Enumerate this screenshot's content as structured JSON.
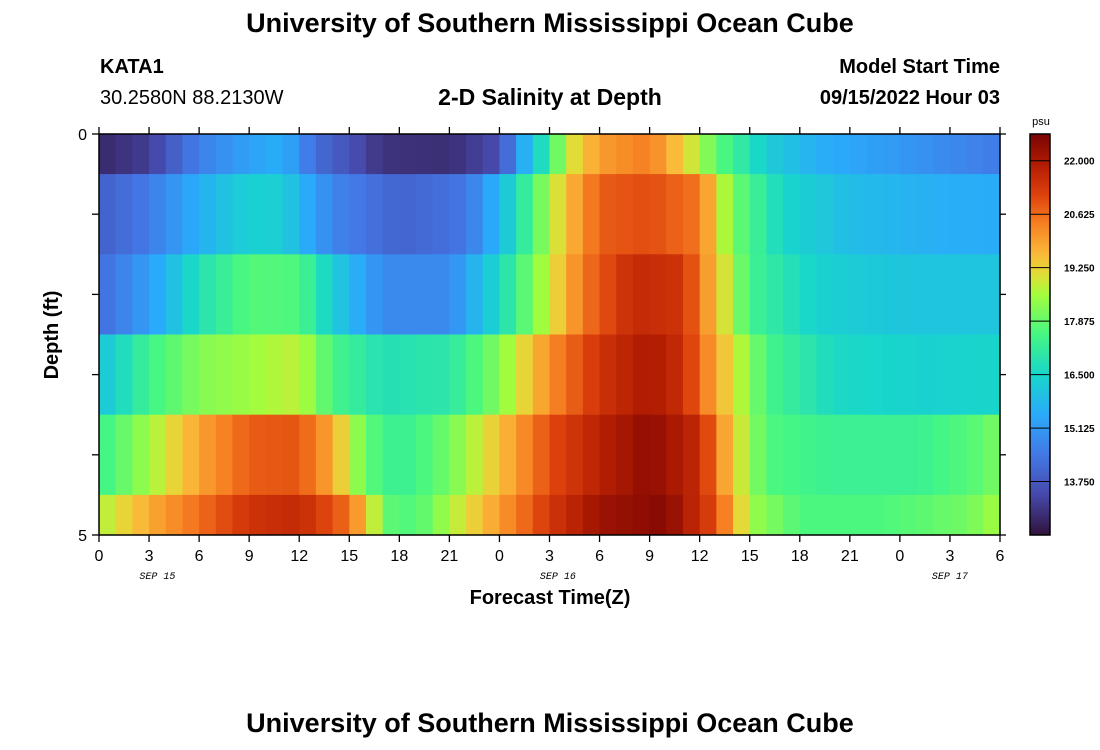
{
  "header": {
    "title": "University of Southern Mississippi Ocean Cube",
    "station_id": "KATA1",
    "coordinates": "30.2580N  88.2130W",
    "model_start_label": "Model Start Time",
    "model_start_value": "09/15/2022 Hour 03",
    "footer_title": "University of Southern Mississippi Ocean Cube"
  },
  "chart_data": {
    "type": "heatmap",
    "title": "2-D Salinity at Depth",
    "xlabel": "Forecast Time(Z)",
    "ylabel": "Depth (ft)",
    "x_tick_labels": [
      "0",
      "3",
      "6",
      "9",
      "12",
      "15",
      "18",
      "21",
      "0",
      "3",
      "6",
      "9",
      "12",
      "15",
      "18",
      "21",
      "0",
      "3",
      "6"
    ],
    "x_hours": [
      0,
      54
    ],
    "date_labels": [
      {
        "label": "SEP 15",
        "hour": 3.5
      },
      {
        "label": "SEP 16",
        "hour": 27.5
      },
      {
        "label": "SEP 17",
        "hour": 51
      },
      {
        "label": "",
        "hour": 0
      }
    ],
    "y_tick_labels": [
      "0",
      "5"
    ],
    "ylim": [
      0,
      5
    ],
    "depth_levels": [
      0,
      1,
      2,
      3,
      4,
      5
    ],
    "colorbar": {
      "unit": "psu",
      "min": 12.375,
      "max": 22.6875,
      "tick_labels": [
        "22.000",
        "20.625",
        "19.250",
        "17.875",
        "16.500",
        "15.125",
        "13.750"
      ],
      "tick_values": [
        22.0,
        20.625,
        19.25,
        17.875,
        16.5,
        15.125,
        13.75
      ]
    },
    "salinity_rows": [
      {
        "depth": 0,
        "keys": [
          [
            0,
            12.8
          ],
          [
            3,
            13.2
          ],
          [
            6,
            14.6
          ],
          [
            9,
            15.3
          ],
          [
            11,
            15.6
          ],
          [
            13,
            14.2
          ],
          [
            17,
            13.0
          ],
          [
            21,
            12.9
          ],
          [
            24,
            13.5
          ],
          [
            25.5,
            15.6
          ],
          [
            27,
            17.2
          ],
          [
            28,
            18.8
          ],
          [
            30,
            20.0
          ],
          [
            33,
            20.4
          ],
          [
            35,
            19.3
          ],
          [
            37,
            17.8
          ],
          [
            40,
            16.3
          ],
          [
            43,
            15.6
          ],
          [
            47,
            15.2
          ],
          [
            51,
            14.8
          ],
          [
            54,
            14.5
          ]
        ]
      },
      {
        "depth": 1,
        "keys": [
          [
            0,
            13.9
          ],
          [
            3,
            14.5
          ],
          [
            6,
            15.6
          ],
          [
            9,
            16.4
          ],
          [
            11,
            16.3
          ],
          [
            14,
            14.7
          ],
          [
            18,
            14.0
          ],
          [
            22,
            14.4
          ],
          [
            24,
            15.8
          ],
          [
            26,
            17.6
          ],
          [
            28,
            19.5
          ],
          [
            30,
            20.8
          ],
          [
            33,
            21.0
          ],
          [
            36,
            20.5
          ],
          [
            38,
            18.0
          ],
          [
            41,
            16.5
          ],
          [
            45,
            15.9
          ],
          [
            50,
            15.6
          ],
          [
            54,
            15.5
          ]
        ]
      },
      {
        "depth": 2,
        "keys": [
          [
            0,
            14.2
          ],
          [
            3,
            15.2
          ],
          [
            6,
            16.8
          ],
          [
            9,
            17.7
          ],
          [
            12,
            17.6
          ],
          [
            14,
            16.3
          ],
          [
            17,
            14.8
          ],
          [
            21,
            14.8
          ],
          [
            24,
            16.6
          ],
          [
            27,
            18.9
          ],
          [
            29,
            20.5
          ],
          [
            32,
            21.6
          ],
          [
            35,
            21.4
          ],
          [
            37,
            19.5
          ],
          [
            39,
            17.4
          ],
          [
            43,
            16.4
          ],
          [
            48,
            16.1
          ],
          [
            54,
            16.1
          ]
        ]
      },
      {
        "depth": 3,
        "keys": [
          [
            0,
            16.0
          ],
          [
            3,
            17.4
          ],
          [
            6,
            18.2
          ],
          [
            9,
            18.5
          ],
          [
            12,
            18.8
          ],
          [
            14,
            17.5
          ],
          [
            17,
            16.8
          ],
          [
            21,
            17.0
          ],
          [
            24,
            18.2
          ],
          [
            27,
            20.2
          ],
          [
            30,
            21.4
          ],
          [
            33,
            22.0
          ],
          [
            35,
            21.5
          ],
          [
            37,
            19.8
          ],
          [
            40,
            17.5
          ],
          [
            44,
            16.6
          ],
          [
            50,
            16.4
          ],
          [
            54,
            16.5
          ]
        ]
      },
      {
        "depth": 4,
        "keys": [
          [
            0,
            17.3
          ],
          [
            3,
            18.5
          ],
          [
            6,
            19.9
          ],
          [
            9,
            20.8
          ],
          [
            12,
            20.9
          ],
          [
            14,
            19.8
          ],
          [
            16,
            17.8
          ],
          [
            18,
            17.2
          ],
          [
            21,
            18.0
          ],
          [
            24,
            19.5
          ],
          [
            27,
            21.0
          ],
          [
            30,
            21.8
          ],
          [
            33,
            22.4
          ],
          [
            36,
            21.6
          ],
          [
            38,
            19.3
          ],
          [
            40,
            17.6
          ],
          [
            44,
            17.3
          ],
          [
            49,
            17.3
          ],
          [
            53,
            17.8
          ],
          [
            54,
            18.2
          ]
        ]
      },
      {
        "depth": 5,
        "keys": [
          [
            0,
            18.6
          ],
          [
            3,
            19.8
          ],
          [
            6,
            20.6
          ],
          [
            9,
            21.4
          ],
          [
            12,
            21.6
          ],
          [
            15,
            20.6
          ],
          [
            16.4,
            19.0
          ],
          [
            17,
            17.8
          ],
          [
            19,
            17.6
          ],
          [
            21,
            18.6
          ],
          [
            24,
            20.0
          ],
          [
            27,
            21.3
          ],
          [
            30,
            22.2
          ],
          [
            34,
            22.5
          ],
          [
            37,
            21.0
          ],
          [
            39,
            18.5
          ],
          [
            42,
            17.6
          ],
          [
            47,
            17.6
          ],
          [
            52,
            18.0
          ],
          [
            54,
            18.6
          ]
        ]
      }
    ]
  }
}
